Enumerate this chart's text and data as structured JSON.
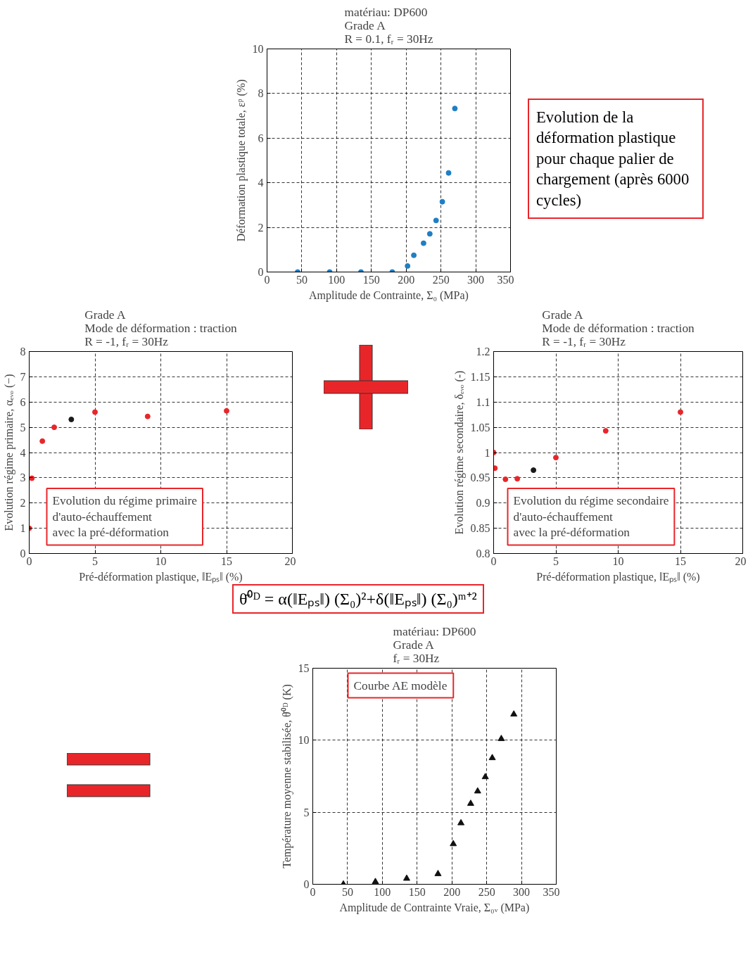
{
  "chart_data": [
    {
      "type": "scatter",
      "title": "matériau: DP600\nGrade A\nR = 0.1, fᵣ = 30Hz",
      "xlabel": "Amplitude de Contrainte, Σ₀ (MPa)",
      "ylabel": "Déformation plastique totale, εᵖ (%)",
      "xlim": [
        0,
        350
      ],
      "ylim": [
        0,
        10
      ],
      "xticks": [
        0,
        50,
        100,
        150,
        200,
        250,
        300,
        350
      ],
      "yticks": [
        0,
        2,
        4,
        6,
        8,
        10
      ],
      "grid": true,
      "marker": "circle",
      "series": [
        {
          "color": "#1f7fc4",
          "x": [
            44,
            90,
            135,
            180,
            202,
            211,
            225,
            234,
            243,
            252,
            261,
            270
          ],
          "values": [
            0,
            0,
            0,
            0,
            0.27,
            0.75,
            1.29,
            1.71,
            2.31,
            3.15,
            4.44,
            7.33
          ]
        }
      ],
      "annotations": [
        "Evolution de la déformation plastique pour chaque palier de chargement (après 6000 cycles)"
      ]
    },
    {
      "type": "scatter",
      "title": "Grade A\nMode de déformation : traction\nR = -1, fᵣ = 30Hz",
      "xlabel": "Pré-déformation plastique, ‖Eₚₛ‖ (%)",
      "ylabel": "Evolution régime primaire, αₑᵥₒ (−)",
      "xlim": [
        0,
        20
      ],
      "ylim": [
        0,
        8
      ],
      "xticks": [
        0,
        5,
        10,
        15,
        20
      ],
      "yticks": [
        0,
        1,
        2,
        3,
        4,
        5,
        6,
        7,
        8
      ],
      "grid": true,
      "marker": "circle",
      "series": [
        {
          "color": "#e8262a",
          "x": [
            0,
            0.2,
            1,
            1.9,
            5,
            9,
            15
          ],
          "values": [
            1.0,
            2.98,
            4.45,
            5.0,
            5.6,
            5.43,
            5.65
          ]
        },
        {
          "color": "#1a1a1a",
          "x": [
            3.2
          ],
          "values": [
            5.31
          ]
        }
      ],
      "annotations": [
        "Evolution du régime primaire\nd'auto-échauffement\navec la pré-déformation"
      ]
    },
    {
      "type": "scatter",
      "title": "Grade A\nMode de déformation : traction\nR = -1, fᵣ = 30Hz",
      "xlabel": "Pré-déformation plastique, ‖Eₚₛ‖ (%)",
      "ylabel": "Evolution régime secondaire, δₑᵥₒ (-)",
      "xlim": [
        0,
        20
      ],
      "ylim": [
        0.8,
        1.2
      ],
      "xticks": [
        0,
        5,
        10,
        15,
        20
      ],
      "yticks": [
        0.8,
        0.85,
        0.9,
        0.95,
        1,
        1.05,
        1.1,
        1.15,
        1.2
      ],
      "grid": true,
      "marker": "circle",
      "series": [
        {
          "color": "#e8262a",
          "x": [
            0,
            0.1,
            0.95,
            1.9,
            5,
            9,
            15
          ],
          "values": [
            1.0,
            0.969,
            0.947,
            0.948,
            0.99,
            1.043,
            1.08
          ]
        },
        {
          "color": "#1a1a1a",
          "x": [
            3.2
          ],
          "values": [
            0.965
          ]
        }
      ],
      "annotations": [
        "Evolution du régime secondaire\nd'auto-échauffement\navec la pré-déformation"
      ]
    },
    {
      "type": "scatter",
      "title": "matériau: DP600\nGrade A\nfᵣ = 30Hz",
      "xlabel": "Amplitude de Contrainte Vraie, Σ₀ᵥ (MPa)",
      "ylabel": "Température moyenne stabilisée, θ̄⁰ᴰ (K)",
      "xlim": [
        0,
        350
      ],
      "ylim": [
        0,
        15
      ],
      "xticks": [
        0,
        50,
        100,
        150,
        200,
        250,
        300,
        350
      ],
      "yticks": [
        0,
        5,
        10,
        15
      ],
      "grid": true,
      "marker": "triangle",
      "series": [
        {
          "color": "#111111",
          "x": [
            44,
            90,
            135,
            180,
            202,
            213,
            227,
            237,
            248,
            258,
            271,
            289
          ],
          "values": [
            0,
            0.17,
            0.4,
            0.72,
            2.8,
            4.25,
            5.6,
            6.46,
            7.45,
            8.77,
            10.1,
            11.8
          ]
        }
      ],
      "annotations": [
        "θ̄⁰ᴰ = α(‖Eₚₛ‖) (Σ₀)²+δ(‖Eₚₛ‖) (Σ₀)ᵐ⁺²",
        "Courbe AE modèle"
      ]
    }
  ]
}
